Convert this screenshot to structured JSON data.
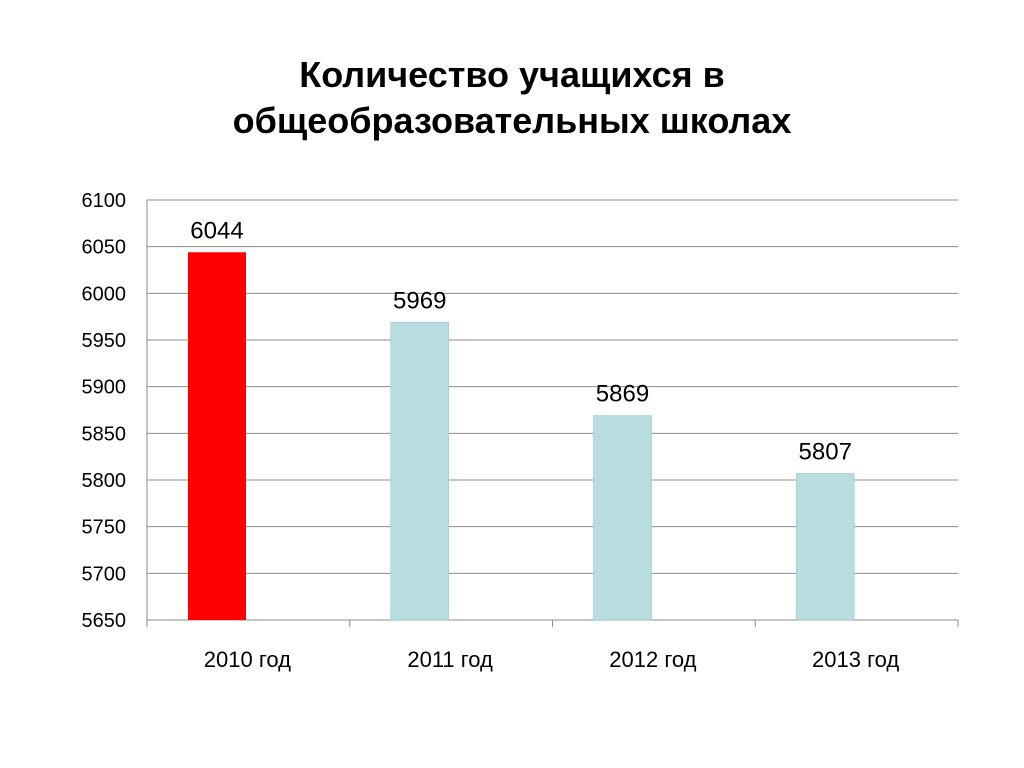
{
  "chart_data": {
    "type": "bar",
    "title_lines": [
      "Количество учащихся в",
      "общеобразовательных школах"
    ],
    "categories": [
      "2010 год",
      "2011 год",
      "2012 год",
      "2013 год"
    ],
    "values": [
      6044,
      5969,
      5869,
      5807
    ],
    "data_labels": [
      "6044",
      "5969",
      "5869",
      "5807"
    ],
    "colors": [
      "#ff0000",
      "#b7dde1",
      "#b7dde1",
      "#b7dde1"
    ],
    "ylim": [
      5650,
      6100
    ],
    "yticks": [
      5650,
      5700,
      5750,
      5800,
      5850,
      5900,
      5950,
      6000,
      6050,
      6100
    ],
    "grid": true,
    "legend": "none",
    "xlabel": "",
    "ylabel": ""
  }
}
